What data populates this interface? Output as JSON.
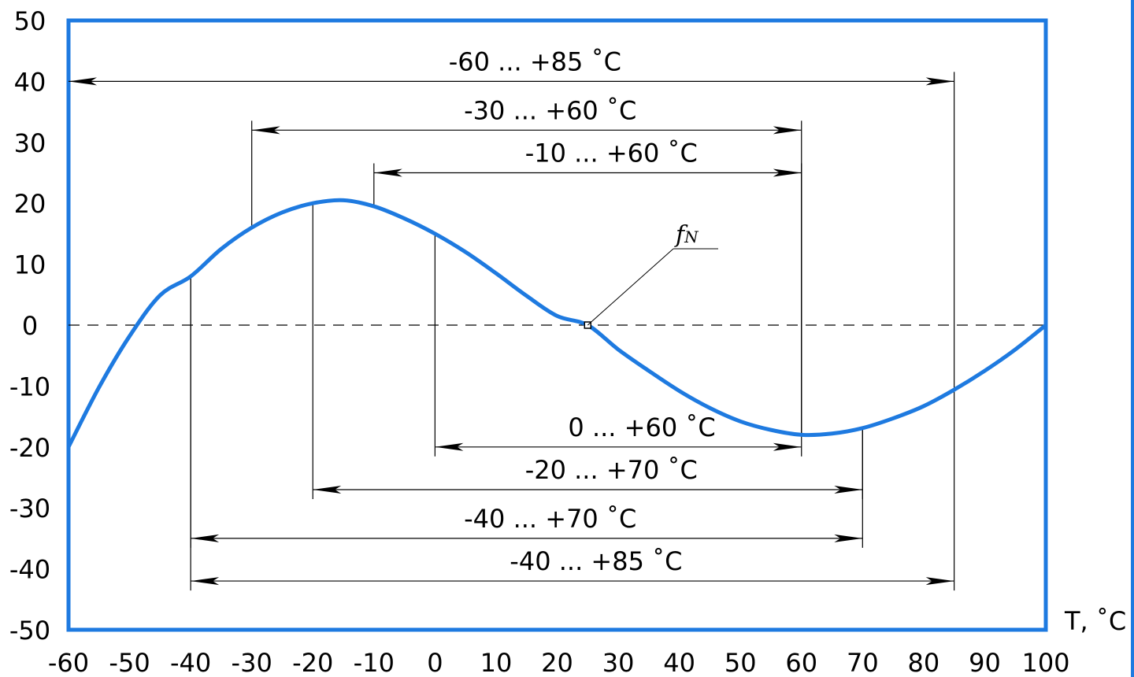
{
  "chart_data": {
    "type": "line",
    "xlabel": "T, ˚C",
    "ylabel": "",
    "xlim": [
      -60,
      100
    ],
    "ylim": [
      -50,
      50
    ],
    "x_ticks": [
      "-60",
      "-50",
      "-40",
      "-30",
      "-20",
      "-10",
      "0",
      "10",
      "20",
      "30",
      "40",
      "50",
      "60",
      "70",
      "80",
      "90",
      "100"
    ],
    "y_ticks": [
      "50",
      "40",
      "30",
      "20",
      "10",
      "0",
      "-10",
      "-20",
      "-30",
      "-40",
      "-50"
    ],
    "grid": false,
    "series": [
      {
        "x": [
          -60,
          -55,
          -50,
          -45,
          -40,
          -35,
          -30,
          -25,
          -20,
          -15,
          -10,
          -5,
          0,
          5,
          10,
          15,
          20,
          25,
          30,
          35,
          40,
          45,
          50,
          55,
          60,
          65,
          70,
          75,
          80,
          85,
          90,
          95,
          100
        ],
        "y": [
          -20.0,
          -10.2,
          -1.8,
          4.9,
          8.0,
          12.5,
          16.0,
          18.5,
          20.0,
          20.5,
          19.5,
          17.5,
          15.0,
          12.0,
          8.5,
          4.8,
          1.5,
          0.0,
          -4.0,
          -7.5,
          -10.8,
          -13.6,
          -15.8,
          -17.2,
          -18.0,
          -17.8,
          -16.9,
          -15.3,
          -13.3,
          -10.6,
          -7.5,
          -4.0,
          0.0
        ]
      }
    ],
    "reference_line": {
      "y": 0,
      "style": "dashed"
    },
    "annotation": {
      "text": "f",
      "subscript": "N",
      "x": 25,
      "y": 0
    },
    "ranges": [
      {
        "label": "-60 ... +85 ˚C",
        "from": -60,
        "to": 85,
        "y": 40
      },
      {
        "label": "-30 ... +60 ˚C",
        "from": -30,
        "to": 60,
        "y": 32
      },
      {
        "label": "-10 ... +60 ˚C",
        "from": -10,
        "to": 60,
        "y": 25
      },
      {
        "label": "0 ... +60 ˚C",
        "from": 0,
        "to": 60,
        "y": -20
      },
      {
        "label": "-20 ... +70 ˚C",
        "from": -20,
        "to": 70,
        "y": -27
      },
      {
        "label": "-40 ... +70 ˚C",
        "from": -40,
        "to": 70,
        "y": -35
      },
      {
        "label": "-40 ... +85 ˚C",
        "from": -40,
        "to": 85,
        "y": -42
      }
    ],
    "colors": {
      "curve": "#1e7ae0",
      "frame": "#1e7ae0",
      "lines": "#000000"
    }
  }
}
